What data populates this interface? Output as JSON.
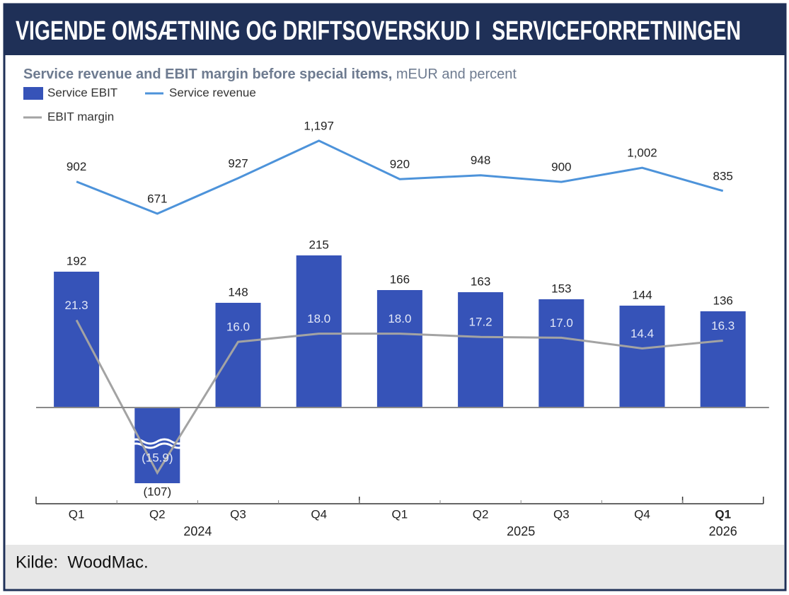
{
  "header": {
    "title": "VIGENDE OMSÆTNING OG DRIFTSOVERSKUD I  SERVICEFORRETNINGEN"
  },
  "chart_data": {
    "type": "bar_line",
    "title": "Service revenue and EBIT margin before special items,",
    "title_units": "mEUR and percent",
    "periods": [
      {
        "year": "2024",
        "quarters": [
          "Q1",
          "Q2",
          "Q3",
          "Q4"
        ]
      },
      {
        "year": "2025",
        "quarters": [
          "Q1",
          "Q2",
          "Q3",
          "Q4"
        ]
      },
      {
        "year": "2026",
        "quarters": [
          "Q1"
        ]
      }
    ],
    "series": [
      {
        "name": "Service EBIT",
        "type": "bar",
        "color": "#3653b8",
        "values": [
          192,
          -107,
          148,
          215,
          166,
          163,
          153,
          144,
          136
        ],
        "value_labels": [
          "192",
          "(107)",
          "148",
          "215",
          "166",
          "163",
          "153",
          "144",
          "136"
        ]
      },
      {
        "name": "Service revenue",
        "type": "line",
        "color": "#4d93da",
        "values": [
          902,
          671,
          927,
          1197,
          920,
          948,
          900,
          1002,
          835
        ],
        "value_labels": [
          "902",
          "671",
          "927",
          "1,197",
          "920",
          "948",
          "900",
          "1,002",
          "835"
        ]
      },
      {
        "name": "EBIT margin",
        "type": "line",
        "color": "#a3a3a3",
        "values": [
          21.3,
          -15.9,
          16.0,
          18.0,
          18.0,
          17.2,
          17.0,
          14.4,
          16.3
        ],
        "value_labels": [
          "21.3",
          "(15.9)",
          "16.0",
          "18.0",
          "18.0",
          "17.2",
          "17.0",
          "14.4",
          "16.3"
        ]
      }
    ]
  },
  "footer": {
    "source": "Kilde:  WoodMac."
  }
}
